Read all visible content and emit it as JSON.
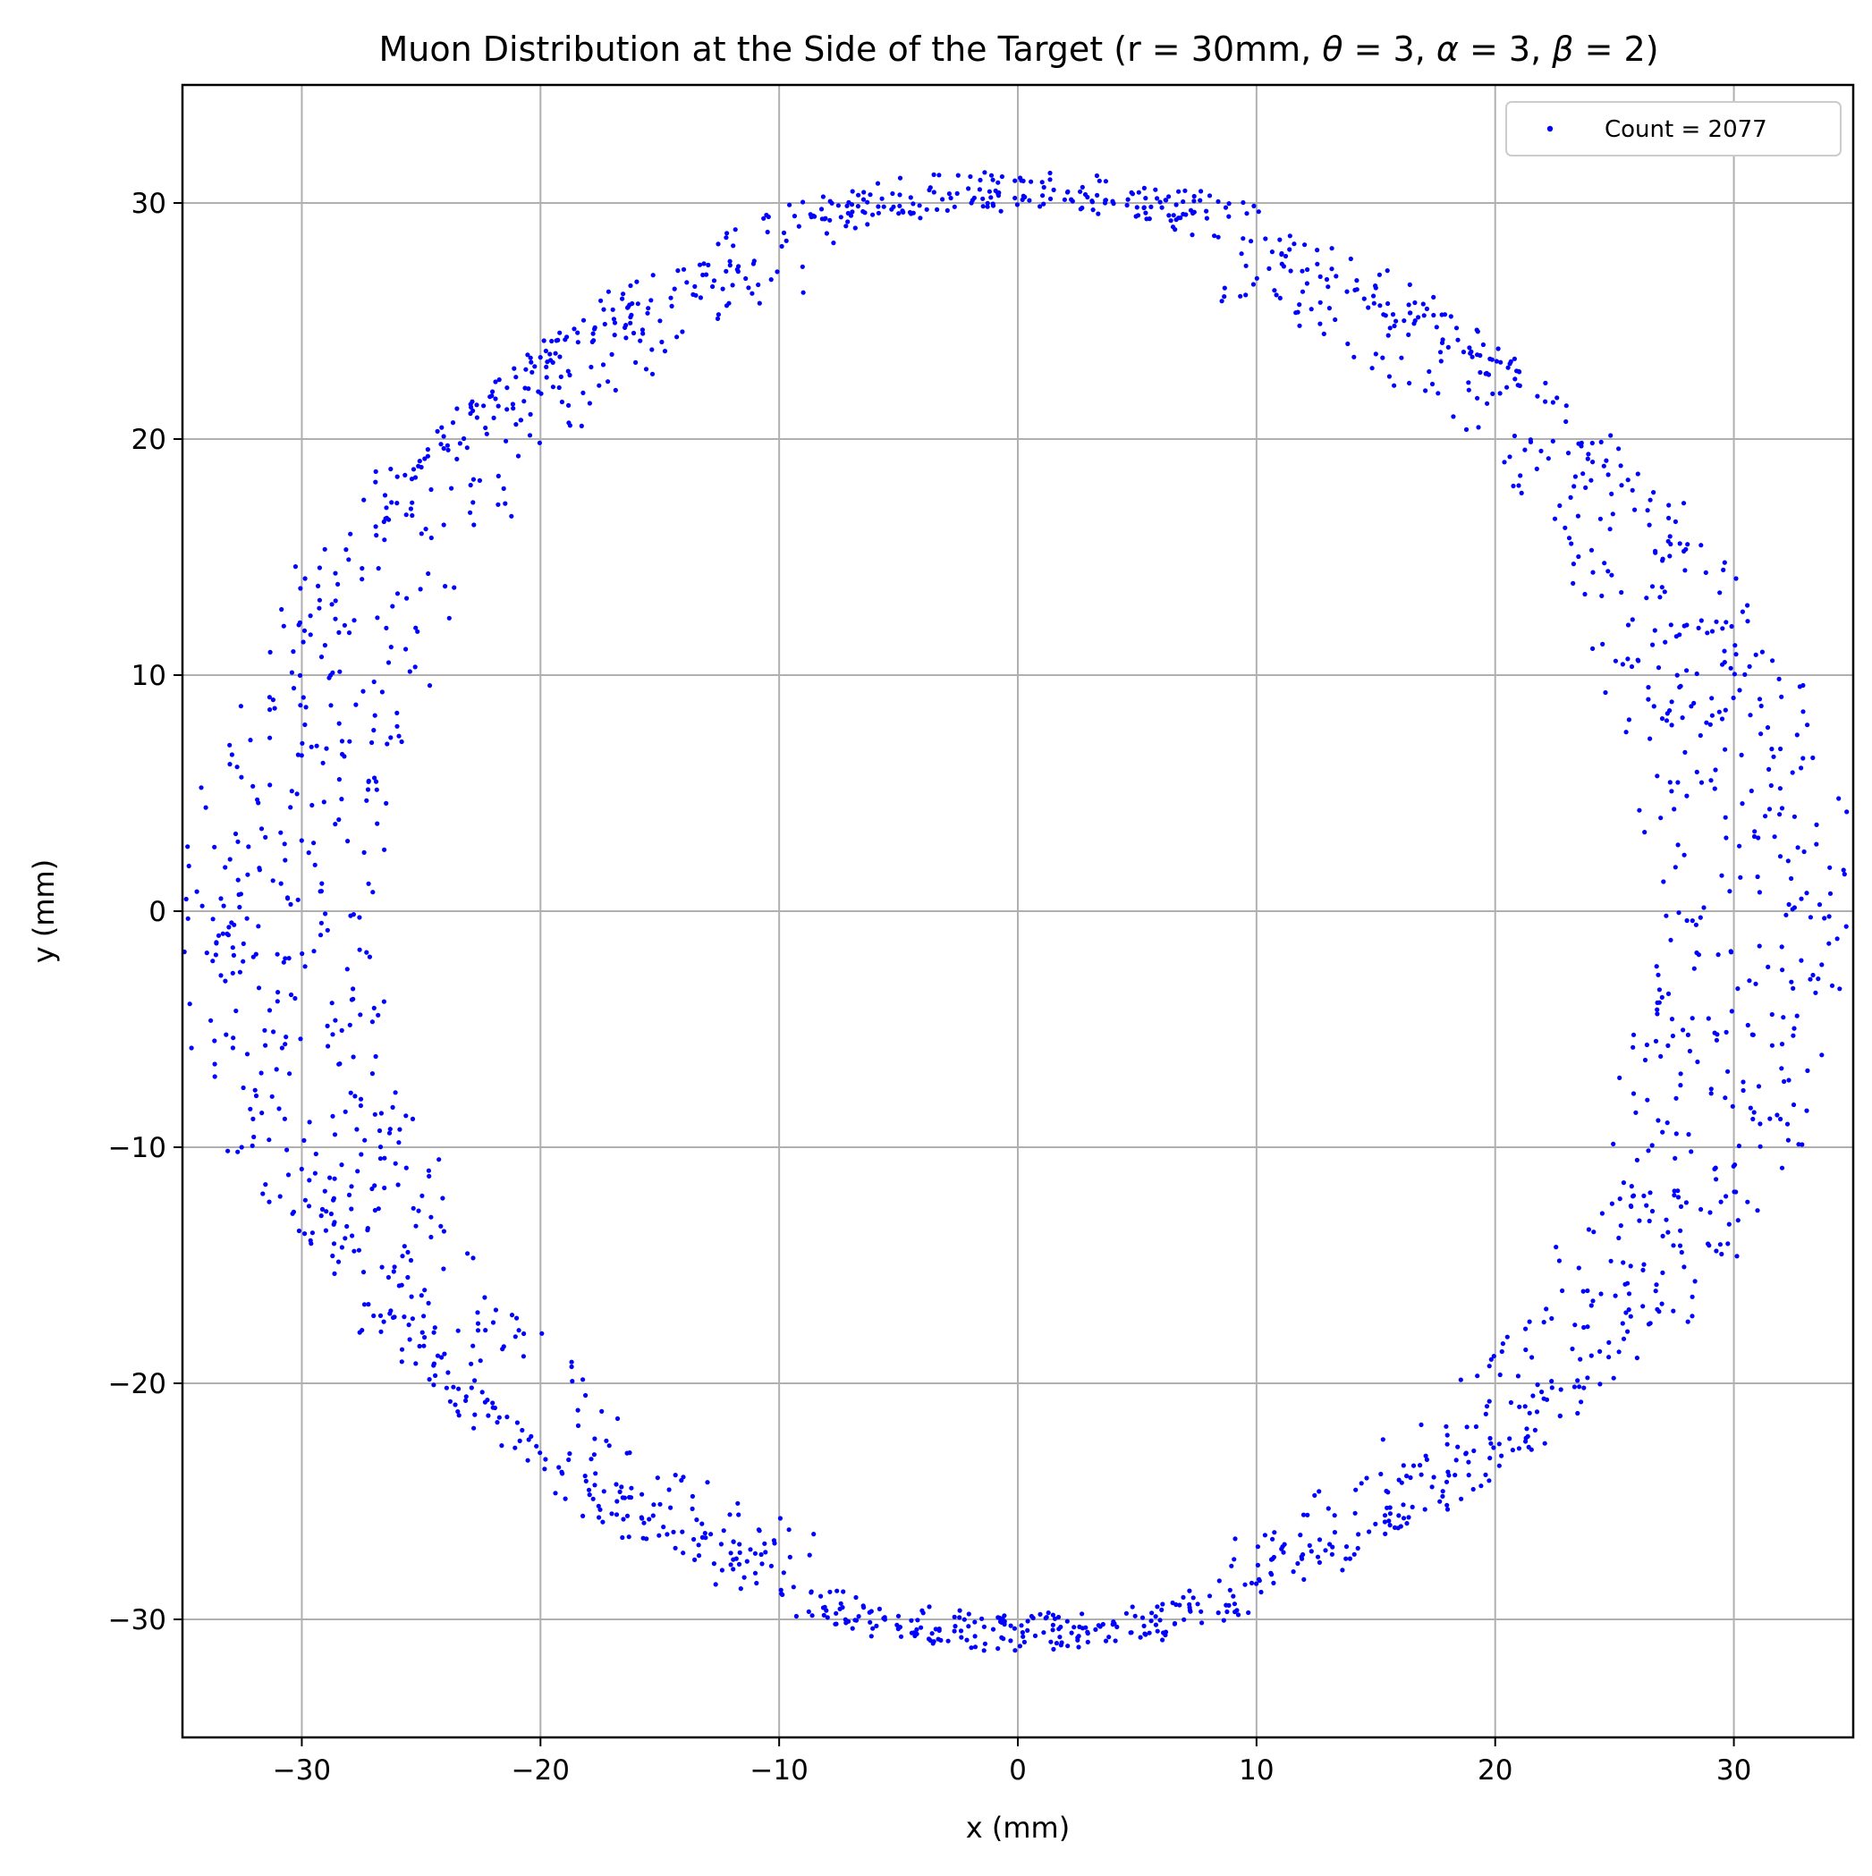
{
  "chart_data": {
    "type": "scatter",
    "title": "Muon Distribution at the Side of the Target (r = 30mm, θ = 3, α = 3, β = 2)",
    "title_prefix": "Muon Distribution at the Side of the Target (r = 30mm, ",
    "title_math": [
      {
        "sym": "θ",
        "eq": " = 3, "
      },
      {
        "sym": "α",
        "eq": " = 3, "
      },
      {
        "sym": "β",
        "eq": " = 2)"
      }
    ],
    "xlabel": "x (mm)",
    "ylabel": "y (mm)",
    "xlim": [
      -35,
      35
    ],
    "ylim": [
      -35,
      35
    ],
    "xticks": [
      -30,
      -20,
      -10,
      0,
      10,
      20,
      30
    ],
    "yticks": [
      -30,
      -20,
      -10,
      0,
      10,
      20,
      30
    ],
    "xtick_labels": [
      "−30",
      "−20",
      "−10",
      "0",
      "10",
      "20",
      "30"
    ],
    "ytick_labels": [
      "−30",
      "−20",
      "−10",
      "0",
      "10",
      "20",
      "30"
    ],
    "grid": true,
    "legend": {
      "label": "Count = 2077",
      "location": "top-right"
    },
    "series": [
      {
        "name": "Count = 2077",
        "color": "#0000ff",
        "count": 2077,
        "distribution": {
          "shape": "annulus",
          "inner_radius_mm": 30.0,
          "outer_radius_mm": 31.5,
          "ring_offset_mm": 8.0,
          "tilt_deg": 30.0,
          "clip": [
            -35,
            35
          ],
          "seed": 20770
        }
      }
    ]
  }
}
